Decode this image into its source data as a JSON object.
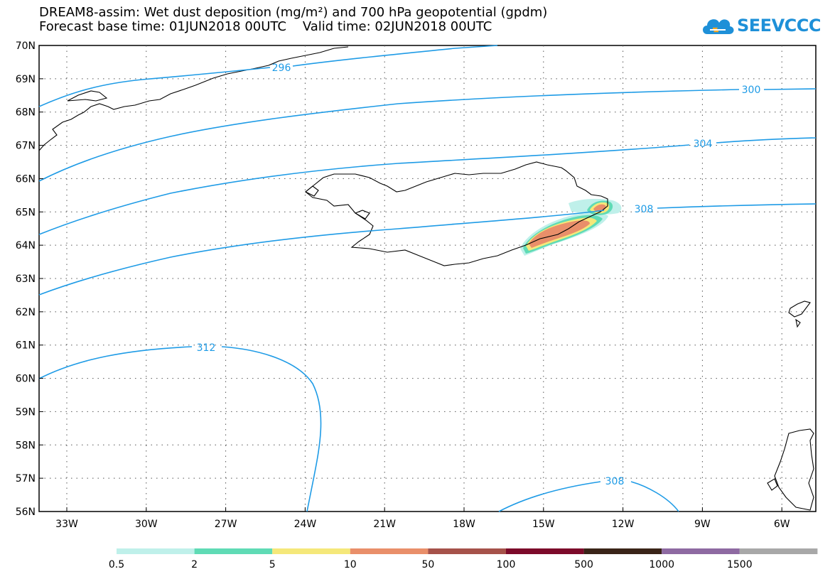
{
  "title": {
    "line1": "DREAM8-assim: Wet dust deposition (mg/m²) and 700 hPa geopotential (gpdm)",
    "line2": "Forecast base time: 01JUN2018 00UTC    Valid time: 02JUN2018 00UTC"
  },
  "logo": {
    "text": "SEEVCCC",
    "icon": "cloud-icon",
    "color": "#1e90d8"
  },
  "map": {
    "lat_labels": [
      "70N",
      "69N",
      "68N",
      "67N",
      "66N",
      "65N",
      "64N",
      "63N",
      "62N",
      "61N",
      "60N",
      "59N",
      "58N",
      "57N",
      "56N"
    ],
    "lon_labels": [
      "33W",
      "30W",
      "27W",
      "24W",
      "21W",
      "18W",
      "15W",
      "12W",
      "9W",
      "6W"
    ],
    "contour_labels": [
      "296",
      "300",
      "304",
      "308",
      "312",
      "308"
    ],
    "contour_color": "#1e9be6",
    "coast_color": "#000000"
  },
  "legend": {
    "labels": [
      "0.5",
      "2",
      "5",
      "10",
      "50",
      "100",
      "500",
      "1000",
      "1500"
    ],
    "colors": [
      "#bff0ea",
      "#5fdbb5",
      "#f5e87a",
      "#e98f6a",
      "#a6524a",
      "#7c0a2a",
      "#3a2418",
      "#8e6aa2",
      "#a8a8a8"
    ]
  }
}
